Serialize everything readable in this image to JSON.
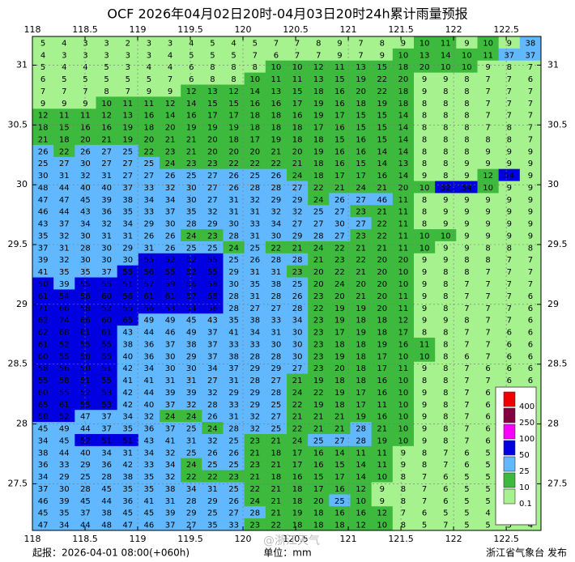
{
  "title": "OCF 2026年04月02日20时-04月03日20时24h累计雨量预报",
  "footer": {
    "issued": "起报：2026-04-01 08:00(+060h)",
    "unit": "单位：mm",
    "publisher": "浙江省气象台 发布",
    "watermark": "@浙江天气"
  },
  "map": {
    "xlim": [
      118,
      122.83
    ],
    "ylim": [
      27.11,
      31.24
    ],
    "xticks": [
      118,
      118.5,
      119,
      119.5,
      120,
      120.5,
      121,
      121.5,
      122,
      122.5
    ],
    "yticks": [
      27.5,
      28,
      28.5,
      29,
      29.5,
      30,
      30.5,
      31
    ]
  },
  "legend": {
    "levels": [
      0.1,
      10,
      25,
      50,
      100,
      250,
      400
    ],
    "colors": [
      "#a6f28f",
      "#3dba3d",
      "#61b8ff",
      "#0000e1",
      "#fa00fa",
      "#800040",
      "#f00000"
    ]
  },
  "grid": {
    "rows": [
      [
        5,
        4,
        3,
        3,
        2,
        3,
        3,
        4,
        5,
        4,
        5,
        7,
        7,
        8,
        9,
        7,
        8,
        9,
        10,
        11,
        9,
        10,
        9,
        38
      ],
      [
        4,
        3,
        3,
        3,
        3,
        3,
        4,
        5,
        5,
        5,
        7,
        6,
        7,
        7,
        9,
        7,
        9,
        10,
        13,
        14,
        10,
        11,
        37,
        37
      ],
      [
        5,
        4,
        4,
        5,
        3,
        4,
        4,
        6,
        8,
        8,
        8,
        10,
        10,
        12,
        11,
        13,
        15,
        18,
        20,
        10,
        10,
        9,
        8,
        7
      ],
      [
        6,
        5,
        5,
        5,
        5,
        5,
        7,
        6,
        8,
        8,
        10,
        11,
        11,
        13,
        15,
        19,
        22,
        20,
        9,
        9,
        8,
        7,
        7,
        6
      ],
      [
        7,
        7,
        7,
        8,
        7,
        9,
        9,
        12,
        13,
        12,
        14,
        13,
        15,
        18,
        16,
        20,
        22,
        18,
        9,
        8,
        8,
        7,
        7,
        7
      ],
      [
        9,
        9,
        9,
        10,
        11,
        11,
        12,
        14,
        15,
        15,
        16,
        16,
        17,
        19,
        16,
        18,
        19,
        18,
        8,
        8,
        8,
        7,
        7,
        7
      ],
      [
        12,
        11,
        11,
        12,
        13,
        16,
        14,
        16,
        17,
        17,
        18,
        18,
        16,
        19,
        17,
        15,
        15,
        14,
        8,
        8,
        8,
        7,
        7,
        7
      ],
      [
        18,
        15,
        16,
        16,
        19,
        18,
        20,
        19,
        19,
        19,
        18,
        18,
        18,
        17,
        16,
        15,
        15,
        14,
        8,
        8,
        8,
        7,
        8,
        7
      ],
      [
        21,
        18,
        20,
        21,
        19,
        20,
        21,
        21,
        20,
        18,
        17,
        19,
        18,
        18,
        15,
        16,
        15,
        14,
        8,
        8,
        8,
        8,
        8,
        7
      ],
      [
        26,
        22,
        26,
        27,
        25,
        22,
        23,
        21,
        20,
        20,
        20,
        21,
        20,
        19,
        16,
        16,
        14,
        14,
        8,
        8,
        8,
        9,
        9,
        9
      ],
      [
        25,
        27,
        30,
        27,
        27,
        25,
        24,
        23,
        23,
        22,
        22,
        22,
        21,
        18,
        16,
        15,
        14,
        13,
        8,
        8,
        9,
        9,
        9,
        9
      ],
      [
        30,
        31,
        32,
        31,
        27,
        27,
        26,
        25,
        27,
        26,
        25,
        26,
        24,
        18,
        17,
        17,
        16,
        14,
        9,
        8,
        9,
        12,
        54,
        9
      ],
      [
        48,
        44,
        40,
        40,
        37,
        33,
        32,
        30,
        27,
        26,
        28,
        28,
        27,
        22,
        21,
        24,
        21,
        20,
        10,
        52,
        54,
        10,
        9,
        9
      ],
      [
        47,
        47,
        45,
        39,
        38,
        34,
        34,
        30,
        27,
        31,
        32,
        29,
        29,
        24,
        26,
        27,
        46,
        11,
        8,
        9,
        9,
        9,
        9,
        9
      ],
      [
        46,
        44,
        43,
        36,
        35,
        33,
        37,
        35,
        32,
        31,
        31,
        32,
        32,
        25,
        27,
        23,
        21,
        11,
        8,
        9,
        9,
        9,
        9,
        9
      ],
      [
        43,
        37,
        34,
        32,
        34,
        29,
        30,
        28,
        29,
        30,
        33,
        34,
        27,
        27,
        30,
        27,
        22,
        11,
        8,
        9,
        9,
        9,
        9,
        9
      ],
      [
        35,
        32,
        30,
        31,
        31,
        26,
        26,
        24,
        23,
        28,
        31,
        30,
        29,
        28,
        27,
        23,
        22,
        11,
        10,
        10,
        9,
        9,
        9,
        9
      ],
      [
        37,
        31,
        28,
        30,
        29,
        31,
        26,
        25,
        25,
        24,
        25,
        22,
        21,
        24,
        22,
        21,
        21,
        11,
        10,
        9,
        9,
        8,
        8,
        8
      ],
      [
        39,
        32,
        30,
        30,
        30,
        55,
        52,
        52,
        55,
        25,
        26,
        28,
        28,
        21,
        23,
        22,
        20,
        20,
        9,
        9,
        8,
        8,
        7,
        7
      ],
      [
        41,
        35,
        35,
        37,
        55,
        56,
        55,
        52,
        55,
        29,
        31,
        31,
        23,
        20,
        22,
        21,
        20,
        10,
        9,
        8,
        8,
        7,
        7,
        7
      ],
      [
        50,
        39,
        55,
        55,
        51,
        57,
        59,
        56,
        58,
        30,
        35,
        38,
        25,
        20,
        24,
        20,
        20,
        10,
        9,
        8,
        7,
        7,
        7,
        7
      ],
      [
        61,
        54,
        58,
        60,
        56,
        61,
        61,
        57,
        58,
        28,
        31,
        28,
        26,
        23,
        20,
        21,
        20,
        11,
        9,
        8,
        7,
        7,
        7,
        6
      ],
      [
        71,
        66,
        58,
        52,
        55,
        56,
        53,
        54,
        56,
        28,
        27,
        27,
        28,
        22,
        19,
        19,
        20,
        11,
        9,
        8,
        7,
        7,
        7,
        6
      ],
      [
        62,
        74,
        66,
        60,
        65,
        49,
        49,
        45,
        43,
        35,
        38,
        33,
        34,
        23,
        19,
        18,
        18,
        12,
        9,
        9,
        8,
        7,
        7,
        6
      ],
      [
        62,
        68,
        61,
        61,
        43,
        44,
        46,
        49,
        37,
        41,
        34,
        31,
        30,
        23,
        17,
        19,
        18,
        17,
        8,
        8,
        7,
        7,
        6,
        6
      ],
      [
        61,
        52,
        55,
        55,
        38,
        36,
        37,
        38,
        37,
        33,
        33,
        30,
        30,
        23,
        18,
        18,
        19,
        16,
        11,
        8,
        7,
        7,
        6,
        6
      ],
      [
        60,
        55,
        58,
        55,
        40,
        36,
        30,
        29,
        37,
        38,
        28,
        28,
        30,
        23,
        19,
        18,
        17,
        10,
        10,
        8,
        6,
        7,
        6,
        6
      ],
      [
        58,
        56,
        50,
        51,
        42,
        34,
        30,
        30,
        34,
        37,
        29,
        29,
        27,
        23,
        20,
        18,
        17,
        11,
        9,
        8,
        7,
        6,
        6,
        6
      ],
      [
        55,
        58,
        51,
        55,
        41,
        41,
        31,
        31,
        27,
        31,
        28,
        27,
        21,
        19,
        18,
        18,
        16,
        10,
        8,
        8,
        7,
        7,
        6,
        6
      ],
      [
        60,
        55,
        52,
        53,
        42,
        44,
        39,
        39,
        32,
        29,
        29,
        28,
        24,
        22,
        19,
        17,
        16,
        10,
        9,
        8,
        7,
        6,
        6,
        6
      ],
      [
        65,
        61,
        55,
        53,
        42,
        40,
        37,
        32,
        28,
        33,
        29,
        25,
        22,
        19,
        18,
        17,
        11,
        10,
        9,
        8,
        7,
        6,
        6,
        6
      ],
      [
        58,
        52,
        47,
        37,
        34,
        32,
        24,
        24,
        26,
        31,
        32,
        27,
        21,
        21,
        21,
        19,
        16,
        10,
        9,
        8,
        7,
        6,
        6,
        5
      ],
      [
        45,
        49,
        44,
        37,
        35,
        36,
        37,
        25,
        24,
        28,
        32,
        25,
        22,
        21,
        21,
        28,
        21,
        10,
        9,
        8,
        7,
        6,
        6,
        5
      ],
      [
        34,
        45,
        52,
        51,
        51,
        43,
        41,
        31,
        32,
        25,
        23,
        21,
        24,
        25,
        27,
        28,
        19,
        10,
        9,
        8,
        7,
        6,
        6,
        5
      ],
      [
        38,
        44,
        40,
        34,
        31,
        34,
        32,
        25,
        26,
        26,
        21,
        18,
        17,
        16,
        14,
        11,
        11,
        9,
        8,
        7,
        6,
        5,
        5,
        5
      ],
      [
        36,
        33,
        29,
        36,
        42,
        33,
        34,
        24,
        25,
        25,
        23,
        21,
        17,
        16,
        15,
        14,
        11,
        9,
        8,
        7,
        6,
        5,
        5,
        5
      ],
      [
        34,
        29,
        25,
        28,
        38,
        35,
        32,
        22,
        22,
        23,
        21,
        18,
        16,
        15,
        17,
        14,
        10,
        8,
        7,
        6,
        5,
        5,
        5,
        5
      ],
      [
        37,
        30,
        28,
        45,
        35,
        35,
        38,
        34,
        31,
        25,
        22,
        21,
        18,
        17,
        16,
        12,
        9,
        8,
        7,
        6,
        5,
        5,
        4,
        4
      ],
      [
        46,
        39,
        45,
        44,
        36,
        41,
        31,
        28,
        29,
        26,
        24,
        21,
        18,
        20,
        25,
        10,
        9,
        8,
        7,
        6,
        5,
        5,
        4,
        4
      ],
      [
        45,
        35,
        37,
        38,
        45,
        45,
        39,
        29,
        25,
        27,
        28,
        21,
        19,
        18,
        16,
        16,
        12,
        7,
        6,
        5,
        5,
        4,
        4,
        4
      ],
      [
        47,
        34,
        44,
        48,
        47,
        46,
        37,
        27,
        35,
        33,
        23,
        22,
        18,
        18,
        18,
        12,
        10,
        8,
        5,
        7,
        5,
        5,
        5,
        4
      ]
    ]
  }
}
